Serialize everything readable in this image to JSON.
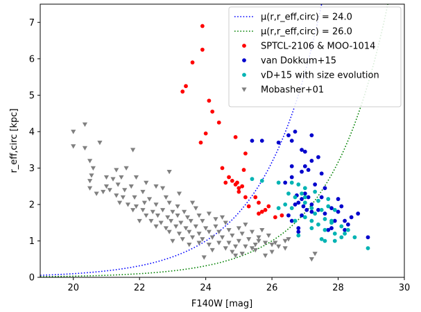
{
  "chart_data": {
    "type": "scatter",
    "xlabel": "F140W [mag]",
    "ylabel": "r_eff,circ [kpc]",
    "xlim": [
      19,
      30
    ],
    "ylim": [
      0,
      7.5
    ],
    "xticks": [
      "20",
      "22",
      "24",
      "26",
      "28",
      "30"
    ],
    "yticks": [
      "0",
      "1",
      "2",
      "3",
      "4",
      "5",
      "6",
      "7"
    ],
    "grid": false,
    "legend_position": "top-right",
    "colors": {
      "blue_curve": "#0000ff",
      "green_curve": "#008000",
      "red": "#ff0000",
      "blue": "#0000cc",
      "cyan": "#00b3b3",
      "gray": "#808080"
    },
    "curves": [
      {
        "name": "μ(r,r_eff,circ) = 24.0",
        "style": "dotted",
        "color": "#0000ff",
        "mu": 24.0
      },
      {
        "name": "μ(r,r_eff,circ) = 26.0",
        "style": "dotted",
        "color": "#008000",
        "mu": 26.0
      }
    ],
    "series": [
      {
        "name": "SPTCL-2106 & MOO-1014",
        "marker": "circle",
        "color": "#ff0000",
        "points": [
          [
            23.9,
            6.9
          ],
          [
            23.9,
            6.25
          ],
          [
            23.6,
            5.9
          ],
          [
            23.4,
            5.25
          ],
          [
            23.3,
            5.1
          ],
          [
            24.1,
            4.85
          ],
          [
            24.2,
            4.55
          ],
          [
            24.4,
            4.25
          ],
          [
            24.0,
            3.95
          ],
          [
            23.85,
            3.7
          ],
          [
            24.9,
            3.85
          ],
          [
            25.2,
            3.4
          ],
          [
            24.5,
            3.0
          ],
          [
            25.15,
            2.95
          ],
          [
            24.7,
            2.75
          ],
          [
            24.6,
            2.6
          ],
          [
            24.8,
            2.65
          ],
          [
            24.9,
            2.55
          ],
          [
            25.0,
            2.45
          ],
          [
            25.0,
            2.35
          ],
          [
            25.2,
            2.2
          ],
          [
            25.5,
            2.2
          ],
          [
            25.6,
            2.05
          ],
          [
            25.3,
            1.95
          ],
          [
            25.9,
            1.95
          ],
          [
            25.7,
            1.8
          ],
          [
            25.8,
            1.85
          ],
          [
            25.6,
            1.75
          ],
          [
            26.1,
            1.65
          ],
          [
            26.3,
            1.7
          ],
          [
            25.1,
            2.5
          ],
          [
            24.95,
            2.6
          ]
        ]
      },
      {
        "name": "van Dokkum+15",
        "marker": "circle",
        "color": "#0000cc",
        "points": [
          [
            25.4,
            3.75
          ],
          [
            25.7,
            3.75
          ],
          [
            26.5,
            3.9
          ],
          [
            26.6,
            3.75
          ],
          [
            26.7,
            4.0
          ],
          [
            27.2,
            3.9
          ],
          [
            26.2,
            3.7
          ],
          [
            26.9,
            3.5
          ],
          [
            27.0,
            3.45
          ],
          [
            27.2,
            3.2
          ],
          [
            27.4,
            3.3
          ],
          [
            27.0,
            3.05
          ],
          [
            26.6,
            3.05
          ],
          [
            27.1,
            2.95
          ],
          [
            26.9,
            2.9
          ],
          [
            26.6,
            2.75
          ],
          [
            27.5,
            2.85
          ],
          [
            26.4,
            2.6
          ],
          [
            27.3,
            2.55
          ],
          [
            27.6,
            2.45
          ],
          [
            27.0,
            2.3
          ],
          [
            26.9,
            2.15
          ],
          [
            27.1,
            2.2
          ],
          [
            26.7,
            2.0
          ],
          [
            27.2,
            2.0
          ],
          [
            27.4,
            1.85
          ],
          [
            27.8,
            1.9
          ],
          [
            28.0,
            2.15
          ],
          [
            28.1,
            1.95
          ],
          [
            28.0,
            1.8
          ],
          [
            27.6,
            1.75
          ],
          [
            28.6,
            1.75
          ],
          [
            26.5,
            1.7
          ],
          [
            26.6,
            1.55
          ],
          [
            28.4,
            1.65
          ],
          [
            28.2,
            1.55
          ],
          [
            27.9,
            1.55
          ],
          [
            26.8,
            1.35
          ],
          [
            27.7,
            1.3
          ],
          [
            27.8,
            1.35
          ],
          [
            28.3,
            1.45
          ],
          [
            28.2,
            1.3
          ],
          [
            28.9,
            1.1
          ],
          [
            26.8,
            1.25
          ],
          [
            26.9,
            1.7
          ],
          [
            27.2,
            1.8
          ],
          [
            26.8,
            2.05
          ],
          [
            26.75,
            2.25
          ],
          [
            26.95,
            1.95
          ],
          [
            27.05,
            1.85
          ],
          [
            27.5,
            2.2
          ]
        ]
      },
      {
        "name": "vD+15 with size evolution",
        "marker": "circle",
        "color": "#00b3b3",
        "points": [
          [
            25.4,
            2.7
          ],
          [
            25.7,
            2.65
          ],
          [
            26.2,
            2.6
          ],
          [
            26.6,
            2.6
          ],
          [
            26.8,
            2.55
          ],
          [
            27.0,
            2.45
          ],
          [
            26.9,
            2.3
          ],
          [
            27.3,
            2.35
          ],
          [
            26.7,
            2.2
          ],
          [
            27.0,
            2.2
          ],
          [
            27.4,
            2.1
          ],
          [
            27.7,
            2.15
          ],
          [
            26.4,
            2.0
          ],
          [
            26.2,
            1.9
          ],
          [
            26.6,
            1.9
          ],
          [
            27.2,
            1.9
          ],
          [
            27.5,
            1.85
          ],
          [
            27.7,
            1.95
          ],
          [
            27.9,
            1.85
          ],
          [
            27.3,
            1.75
          ],
          [
            27.0,
            1.65
          ],
          [
            27.6,
            1.6
          ],
          [
            27.8,
            1.55
          ],
          [
            26.7,
            1.55
          ],
          [
            28.1,
            1.4
          ],
          [
            27.8,
            1.5
          ],
          [
            27.4,
            1.45
          ],
          [
            27.2,
            1.35
          ],
          [
            27.6,
            1.3
          ],
          [
            28.3,
            1.3
          ],
          [
            27.9,
            1.2
          ],
          [
            28.1,
            1.1
          ],
          [
            28.5,
            1.1
          ],
          [
            27.6,
            1.0
          ],
          [
            27.9,
            1.0
          ],
          [
            26.8,
            1.15
          ],
          [
            28.9,
            0.8
          ],
          [
            27.0,
            2.05
          ],
          [
            26.5,
            2.3
          ],
          [
            27.2,
            1.55
          ],
          [
            28.2,
            1.2
          ],
          [
            27.5,
            1.05
          ]
        ]
      },
      {
        "name": "Mobasher+01",
        "marker": "triangle_down",
        "color": "#808080",
        "points": [
          [
            20.0,
            4.0
          ],
          [
            20.35,
            4.2
          ],
          [
            20.0,
            3.6
          ],
          [
            20.35,
            3.55
          ],
          [
            20.8,
            3.7
          ],
          [
            21.8,
            3.5
          ],
          [
            20.5,
            3.2
          ],
          [
            20.6,
            3.0
          ],
          [
            20.55,
            2.8
          ],
          [
            21.3,
            2.95
          ],
          [
            21.6,
            3.0
          ],
          [
            21.0,
            2.75
          ],
          [
            22.9,
            2.9
          ],
          [
            20.5,
            2.65
          ],
          [
            21.2,
            2.7
          ],
          [
            21.45,
            2.75
          ],
          [
            21.9,
            2.75
          ],
          [
            22.2,
            2.6
          ],
          [
            21.0,
            2.5
          ],
          [
            20.9,
            2.35
          ],
          [
            21.35,
            2.55
          ],
          [
            21.75,
            2.5
          ],
          [
            22.5,
            2.5
          ],
          [
            20.7,
            2.3
          ],
          [
            21.1,
            2.4
          ],
          [
            21.55,
            2.4
          ],
          [
            22.1,
            2.35
          ],
          [
            22.7,
            2.45
          ],
          [
            20.5,
            2.45
          ],
          [
            21.3,
            2.25
          ],
          [
            21.5,
            2.2
          ],
          [
            21.85,
            2.2
          ],
          [
            22.3,
            2.15
          ],
          [
            22.8,
            2.2
          ],
          [
            23.2,
            2.3
          ],
          [
            21.4,
            2.05
          ],
          [
            21.65,
            2.0
          ],
          [
            21.9,
            1.95
          ],
          [
            22.15,
            2.05
          ],
          [
            22.5,
            2.0
          ],
          [
            22.9,
            2.05
          ],
          [
            23.15,
            1.95
          ],
          [
            23.6,
            2.05
          ],
          [
            21.8,
            1.85
          ],
          [
            22.1,
            1.85
          ],
          [
            22.4,
            1.8
          ],
          [
            22.7,
            1.85
          ],
          [
            23.0,
            1.8
          ],
          [
            23.35,
            1.8
          ],
          [
            23.7,
            1.9
          ],
          [
            22.2,
            1.7
          ],
          [
            22.55,
            1.7
          ],
          [
            22.85,
            1.65
          ],
          [
            23.15,
            1.7
          ],
          [
            23.45,
            1.65
          ],
          [
            23.8,
            1.7
          ],
          [
            24.1,
            1.75
          ],
          [
            22.0,
            1.55
          ],
          [
            22.35,
            1.55
          ],
          [
            22.65,
            1.5
          ],
          [
            22.95,
            1.55
          ],
          [
            23.25,
            1.5
          ],
          [
            23.55,
            1.55
          ],
          [
            23.9,
            1.55
          ],
          [
            24.3,
            1.6
          ],
          [
            22.5,
            1.4
          ],
          [
            22.8,
            1.35
          ],
          [
            23.1,
            1.4
          ],
          [
            23.4,
            1.35
          ],
          [
            23.7,
            1.4
          ],
          [
            24.0,
            1.35
          ],
          [
            24.3,
            1.4
          ],
          [
            24.6,
            1.5
          ],
          [
            22.9,
            1.25
          ],
          [
            23.2,
            1.2
          ],
          [
            23.5,
            1.25
          ],
          [
            23.8,
            1.2
          ],
          [
            24.1,
            1.25
          ],
          [
            24.4,
            1.25
          ],
          [
            24.7,
            1.3
          ],
          [
            25.0,
            1.35
          ],
          [
            23.3,
            1.05
          ],
          [
            23.6,
            1.1
          ],
          [
            23.9,
            1.05
          ],
          [
            24.2,
            1.1
          ],
          [
            24.5,
            1.1
          ],
          [
            24.8,
            1.15
          ],
          [
            25.1,
            1.2
          ],
          [
            25.4,
            1.25
          ],
          [
            23.8,
            0.95
          ],
          [
            24.1,
            0.9
          ],
          [
            24.4,
            0.95
          ],
          [
            24.7,
            0.95
          ],
          [
            25.0,
            1.0
          ],
          [
            25.3,
            1.05
          ],
          [
            25.6,
            1.1
          ],
          [
            25.9,
            1.15
          ],
          [
            24.6,
            0.8
          ],
          [
            24.9,
            0.85
          ],
          [
            25.2,
            0.85
          ],
          [
            25.5,
            0.9
          ],
          [
            25.8,
            0.95
          ],
          [
            26.1,
            0.95
          ],
          [
            26.4,
            1.0
          ],
          [
            23.95,
            0.55
          ],
          [
            24.9,
            0.6
          ],
          [
            25.5,
            0.75
          ],
          [
            26.0,
            0.7
          ],
          [
            26.4,
            0.8
          ],
          [
            27.3,
            0.65
          ],
          [
            27.2,
            0.5
          ],
          [
            26.5,
            1.05
          ],
          [
            25.4,
            0.8
          ],
          [
            24.2,
            0.75
          ],
          [
            23.5,
            0.9
          ],
          [
            25.7,
            1.3
          ],
          [
            25.2,
            1.45
          ],
          [
            24.5,
            1.65
          ],
          [
            23.0,
            1.0
          ],
          [
            24.8,
            0.7
          ],
          [
            25.1,
            0.65
          ],
          [
            25.8,
            0.6
          ],
          [
            26.2,
            0.85
          ],
          [
            25.6,
            1.0
          ],
          [
            26.0,
            0.9
          ]
        ]
      }
    ]
  }
}
